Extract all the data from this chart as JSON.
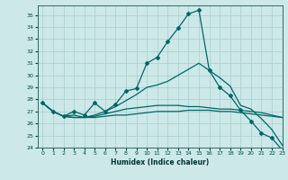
{
  "xlabel": "Humidex (Indice chaleur)",
  "ylabel": "",
  "background_color": "#cce8e8",
  "grid_color": "#aacccc",
  "line_color": "#006666",
  "xlim": [
    -0.5,
    23
  ],
  "ylim": [
    24,
    35.8
  ],
  "yticks": [
    24,
    25,
    26,
    27,
    28,
    29,
    30,
    31,
    32,
    33,
    34,
    35
  ],
  "xticks": [
    0,
    1,
    2,
    3,
    4,
    5,
    6,
    7,
    8,
    9,
    10,
    11,
    12,
    13,
    14,
    15,
    16,
    17,
    18,
    19,
    20,
    21,
    22,
    23
  ],
  "lines": [
    {
      "x": [
        0,
        1,
        2,
        3,
        4,
        5,
        6,
        7,
        8,
        9,
        10,
        11,
        12,
        13,
        14,
        15,
        16,
        17,
        18,
        19,
        20,
        21,
        22,
        23
      ],
      "y": [
        27.7,
        27.0,
        26.6,
        27.0,
        26.7,
        27.7,
        27.0,
        27.6,
        28.7,
        28.9,
        31.0,
        31.5,
        32.8,
        33.9,
        35.1,
        35.4,
        30.4,
        29.0,
        28.3,
        27.1,
        26.2,
        25.2,
        24.8,
        23.8
      ],
      "marker": "D",
      "markersize": 2.0,
      "linewidth": 0.9,
      "has_marker": true
    },
    {
      "x": [
        0,
        1,
        2,
        3,
        4,
        5,
        6,
        7,
        8,
        9,
        10,
        11,
        12,
        13,
        14,
        15,
        16,
        17,
        18,
        19,
        20,
        21,
        22,
        23
      ],
      "y": [
        27.7,
        27.0,
        26.6,
        26.5,
        26.5,
        26.5,
        26.6,
        26.7,
        26.7,
        26.8,
        26.9,
        27.0,
        27.0,
        27.0,
        27.1,
        27.1,
        27.1,
        27.0,
        27.0,
        26.9,
        26.8,
        26.7,
        26.6,
        26.5
      ],
      "marker": null,
      "markersize": 0,
      "linewidth": 0.9,
      "has_marker": false
    },
    {
      "x": [
        0,
        1,
        2,
        3,
        4,
        5,
        6,
        7,
        8,
        9,
        10,
        11,
        12,
        13,
        14,
        15,
        16,
        17,
        18,
        19,
        20,
        21,
        22,
        23
      ],
      "y": [
        27.7,
        27.0,
        26.6,
        26.5,
        26.5,
        26.6,
        26.8,
        27.0,
        27.2,
        27.3,
        27.4,
        27.5,
        27.5,
        27.5,
        27.4,
        27.4,
        27.3,
        27.2,
        27.2,
        27.1,
        27.0,
        26.9,
        26.7,
        26.5
      ],
      "marker": null,
      "markersize": 0,
      "linewidth": 0.9,
      "has_marker": false
    },
    {
      "x": [
        0,
        1,
        2,
        3,
        4,
        5,
        6,
        7,
        8,
        9,
        10,
        11,
        12,
        13,
        14,
        15,
        16,
        17,
        18,
        19,
        20,
        21,
        22,
        23
      ],
      "y": [
        27.7,
        27.0,
        26.6,
        26.7,
        26.5,
        26.7,
        27.0,
        27.4,
        27.9,
        28.4,
        29.0,
        29.2,
        29.5,
        30.0,
        30.5,
        31.0,
        30.4,
        29.8,
        29.1,
        27.5,
        27.2,
        26.4,
        25.5,
        24.2
      ],
      "marker": null,
      "markersize": 0,
      "linewidth": 0.9,
      "has_marker": false
    }
  ],
  "xlabel_fontsize": 5.5,
  "tick_fontsize": 4.5
}
